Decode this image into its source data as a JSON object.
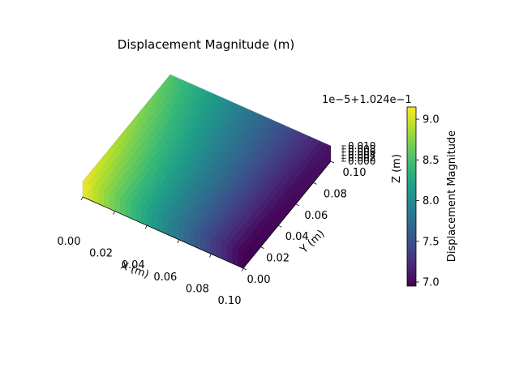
{
  "chart_data": {
    "type": "surface3d",
    "title": "Displacement Magnitude (m)",
    "xlabel": "X (m)",
    "ylabel": "Y (m)",
    "zlabel": "Z (m)",
    "x_ticks": [
      "0.00",
      "0.02",
      "0.04",
      "0.06",
      "0.08",
      "0.10"
    ],
    "y_ticks": [
      "0.00",
      "0.02",
      "0.04",
      "0.06",
      "0.08",
      "0.10"
    ],
    "z_ticks": [
      "0.000",
      "0.002",
      "0.004",
      "0.006",
      "0.008",
      "0.010"
    ],
    "xlim": [
      0,
      0.1
    ],
    "ylim": [
      0,
      0.1
    ],
    "zlim": [
      0,
      0.01
    ],
    "colormap": "viridis",
    "colorbar": {
      "label": "Displacement Magnitude",
      "offset_text": "1e−5+1.024e−1",
      "ticks": [
        "7.0",
        "7.5",
        "8.0",
        "8.5",
        "9.0"
      ],
      "tick_values": [
        7.0,
        7.5,
        8.0,
        8.5,
        9.0
      ],
      "range": [
        6.95,
        9.15
      ]
    },
    "field_corners": {
      "x0_y0": 9.1,
      "x0_y1": 8.55,
      "x1_y0": 6.95,
      "x1_y1": 7.05
    }
  }
}
